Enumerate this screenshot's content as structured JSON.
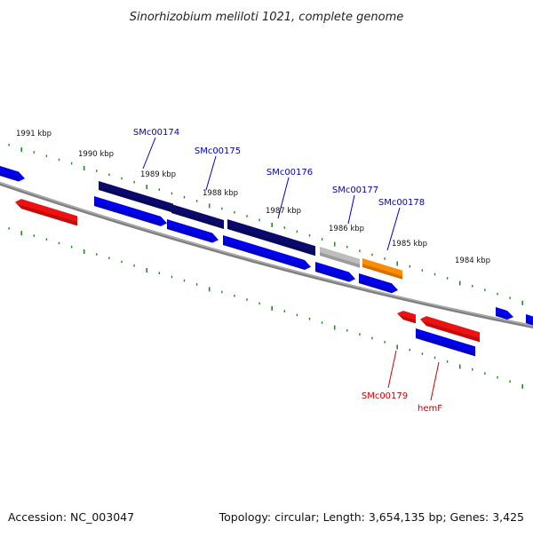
{
  "title": "Sinorhizobium meliloti 1021, complete genome",
  "footer": {
    "accession": "Accession: NC_003047",
    "summary": "Topology: circular; Length: 3,654,135 bp; Genes: 3,425"
  },
  "colors": {
    "backbone": "#808080",
    "forward_cds": "#0000ee",
    "forward_gene": "#0a0a6e",
    "reverse": "#ee1111",
    "pseudo": "#bdbdbd",
    "highlight": "#ff8c00",
    "ticks": "#228b22",
    "label_forward": "#0000cc",
    "label_reverse": "#cc0000"
  },
  "scale_labels": [
    "1991 kbp",
    "1990 kbp",
    "1989 kbp",
    "1988 kbp",
    "1987 kbp",
    "1986 kbp",
    "1985 kbp",
    "1984 kbp"
  ],
  "gene_labels": [
    {
      "text": "SMc00174",
      "strand": "forward"
    },
    {
      "text": "SMc00175",
      "strand": "forward"
    },
    {
      "text": "SMc00176",
      "strand": "forward"
    },
    {
      "text": "SMc00177",
      "strand": "forward"
    },
    {
      "text": "SMc00178",
      "strand": "forward"
    },
    {
      "text": "SMc00179",
      "strand": "reverse"
    },
    {
      "text": "hemF",
      "strand": "reverse"
    }
  ]
}
